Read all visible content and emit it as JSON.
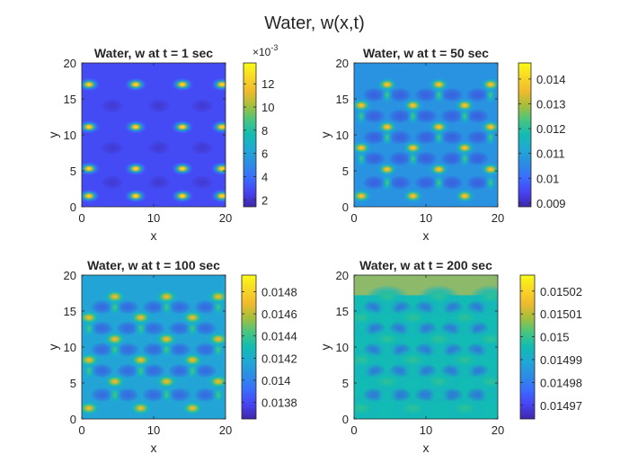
{
  "figure_title": "Water, w(x,t)",
  "colormap": [
    "#3e26a8",
    "#4743f2",
    "#3a6cfe",
    "#2b8de4",
    "#20a8d5",
    "#12bbb3",
    "#45c581",
    "#a2bf3c",
    "#f0b92d",
    "#f9d725",
    "#f9fb15"
  ],
  "chart_data": [
    {
      "type": "heatmap",
      "title": "Water, w at t = 1 sec",
      "xlabel": "x",
      "ylabel": "y",
      "xlim": [
        0,
        20
      ],
      "ylim": [
        0,
        20
      ],
      "xticks": [
        "0",
        "10",
        "20"
      ],
      "yticks": [
        "0",
        "5",
        "10",
        "15",
        "20"
      ],
      "clim": [
        0.0014,
        0.0138
      ],
      "colorbar_ticks": [
        2,
        4,
        6,
        8,
        10,
        12
      ],
      "colorbar_tick_labels": [
        "2",
        "4",
        "6",
        "8",
        "10",
        "12"
      ],
      "colorbar_exponent_base": "×10",
      "colorbar_exponent": "-3",
      "pattern": {
        "spots_x": [
          1,
          7.5,
          14,
          19.5
        ],
        "spots_y": [
          1.5,
          5.3,
          11.1,
          17
        ],
        "bridges": false,
        "background": 0.12,
        "peak": 0.92,
        "smooth": 0.0,
        "sigma_x": 0.9,
        "sigma_y": 0.55
      }
    },
    {
      "type": "heatmap",
      "title": "Water, w at t = 50 sec",
      "xlabel": "x",
      "ylabel": "y",
      "xlim": [
        0,
        20
      ],
      "ylim": [
        0,
        20
      ],
      "xticks": [
        "0",
        "10",
        "20"
      ],
      "yticks": [
        "0",
        "5",
        "10",
        "15",
        "20"
      ],
      "clim": [
        0.00885,
        0.01465
      ],
      "colorbar_ticks": [
        0.009,
        0.01,
        0.011,
        0.012,
        0.013,
        0.014
      ],
      "colorbar_tick_labels": [
        "0.009",
        "0.01",
        "0.011",
        "0.012",
        "0.013",
        "0.014"
      ],
      "pattern": {
        "spots_x": [
          1,
          4.6,
          8.2,
          11.8,
          15.4,
          19
        ],
        "spots_y": [
          1.5,
          5.2,
          8.2,
          11.1,
          14.1,
          17
        ],
        "bridges": true,
        "background": 0.3,
        "peak": 0.85,
        "smooth": 0.2,
        "sigma_x": 0.9,
        "sigma_y": 0.6
      }
    },
    {
      "type": "heatmap",
      "title": "Water, w at t = 100 sec",
      "xlabel": "x",
      "ylabel": "y",
      "xlim": [
        0,
        20
      ],
      "ylim": [
        0,
        20
      ],
      "xticks": [
        "0",
        "10",
        "20"
      ],
      "yticks": [
        "0",
        "5",
        "10",
        "15",
        "20"
      ],
      "clim": [
        0.01365,
        0.01495
      ],
      "colorbar_ticks": [
        0.0138,
        0.014,
        0.0142,
        0.0144,
        0.0146,
        0.0148
      ],
      "colorbar_tick_labels": [
        "0.0138",
        "0.014",
        "0.0142",
        "0.0144",
        "0.0146",
        "0.0148"
      ],
      "pattern": {
        "spots_x": [
          1,
          4.6,
          8.2,
          11.8,
          15.4,
          19
        ],
        "spots_y": [
          1.5,
          5.2,
          8.2,
          11.1,
          14.1,
          17
        ],
        "bridges": true,
        "background": 0.35,
        "peak": 0.8,
        "smooth": 0.35,
        "sigma_x": 1.0,
        "sigma_y": 0.65
      }
    },
    {
      "type": "heatmap",
      "title": "Water, w at t = 200 sec",
      "xlabel": "x",
      "ylabel": "y",
      "xlim": [
        0,
        20
      ],
      "ylim": [
        0,
        20
      ],
      "xticks": [
        "0",
        "10",
        "20"
      ],
      "yticks": [
        "0",
        "5",
        "10",
        "15",
        "20"
      ],
      "clim": [
        0.014964,
        0.015027
      ],
      "colorbar_ticks": [
        0.01497,
        0.01498,
        0.01499,
        0.015,
        0.01501,
        0.01502
      ],
      "colorbar_tick_labels": [
        "0.01497",
        "0.01498",
        "0.01499",
        "0.015",
        "0.01501",
        "0.01502"
      ],
      "pattern": {
        "spots_x": [
          1,
          4.6,
          8.2,
          11.8,
          15.4,
          19
        ],
        "spots_y": [
          1.5,
          5.2,
          8.2,
          11.1,
          14.1,
          17
        ],
        "bridges": true,
        "background": 0.45,
        "peak": 0.55,
        "smooth": 0.5,
        "sigma_x": 1.6,
        "sigma_y": 0.9,
        "edge_boost": 0.35
      }
    }
  ]
}
